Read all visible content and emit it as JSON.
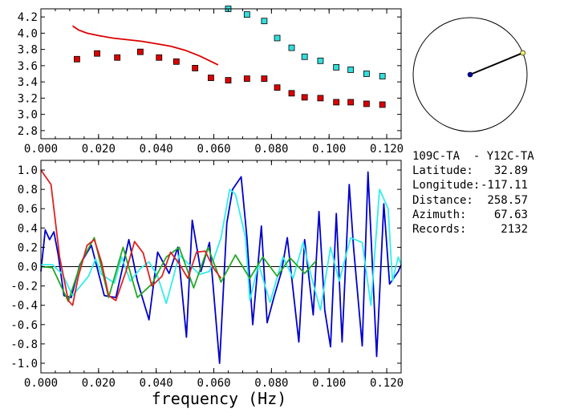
{
  "chart_data": [
    {
      "type": "scatter",
      "xlim": [
        0.0,
        0.125
      ],
      "ylim": [
        2.7,
        4.3
      ],
      "x_ticks": [
        "0.000",
        "0.020",
        "0.040",
        "0.060",
        "0.080",
        "0.100",
        "0.120"
      ],
      "y_ticks": [
        "2.8",
        "3.0",
        "3.2",
        "3.4",
        "3.6",
        "3.8",
        "4.0",
        "4.2"
      ],
      "series": [
        {
          "color": "#dd0000",
          "marker": "square",
          "x": [
            0.0125,
            0.0195,
            0.0265,
            0.0345,
            0.041,
            0.047,
            0.0535,
            0.059,
            0.065,
            0.0715,
            0.0775,
            0.082,
            0.087,
            0.0915,
            0.097,
            0.1025,
            0.1075,
            0.113,
            0.1185
          ],
          "y": [
            3.68,
            3.75,
            3.7,
            3.77,
            3.7,
            3.65,
            3.57,
            3.45,
            3.42,
            3.44,
            3.44,
            3.33,
            3.26,
            3.21,
            3.2,
            3.15,
            3.15,
            3.13,
            3.12
          ]
        },
        {
          "color": "#33dddd",
          "marker": "square",
          "x": [
            0.065,
            0.0715,
            0.0775,
            0.082,
            0.087,
            0.0915,
            0.097,
            0.1025,
            0.1075,
            0.113,
            0.1185
          ],
          "y": [
            4.3,
            4.23,
            4.15,
            3.94,
            3.82,
            3.71,
            3.66,
            3.58,
            3.55,
            3.5,
            3.47
          ]
        },
        {
          "color": "#dd0000",
          "marker": "line",
          "x": [
            0.011,
            0.013,
            0.016,
            0.02,
            0.025,
            0.03,
            0.035,
            0.04,
            0.045,
            0.05,
            0.055,
            0.058,
            0.0615
          ],
          "y": [
            4.09,
            4.04,
            4.0,
            3.97,
            3.94,
            3.92,
            3.9,
            3.87,
            3.84,
            3.79,
            3.72,
            3.67,
            3.61
          ]
        }
      ]
    },
    {
      "type": "line",
      "xlabel": "frequency (Hz)",
      "xlim": [
        0.0,
        0.125
      ],
      "ylim": [
        -1.1,
        1.1
      ],
      "x_ticks": [
        "0.000",
        "0.020",
        "0.040",
        "0.060",
        "0.080",
        "0.100",
        "0.120"
      ],
      "y_ticks": [
        "-1.0",
        "-0.8",
        "-0.6",
        "-0.4",
        "-0.2",
        "0.0",
        "0.2",
        "0.4",
        "0.6",
        "0.8",
        "1.0"
      ],
      "series": [
        {
          "color": "#0000cc",
          "x": [
            0.0,
            0.0015,
            0.003,
            0.0045,
            0.006,
            0.008,
            0.0105,
            0.0135,
            0.0175,
            0.022,
            0.026,
            0.0305,
            0.0335,
            0.0375,
            0.0405,
            0.0445,
            0.0475,
            0.0505,
            0.0525,
            0.0555,
            0.0585,
            0.062,
            0.0645,
            0.0665,
            0.0695,
            0.0715,
            0.0735,
            0.0765,
            0.0785,
            0.081,
            0.0835,
            0.0855,
            0.0895,
            0.0915,
            0.0945,
            0.0965,
            0.0985,
            0.1005,
            0.1025,
            0.1045,
            0.107,
            0.1085,
            0.1115,
            0.1135,
            0.1165,
            0.119,
            0.121,
            0.124,
            0.125
          ],
          "y": [
            -0.05,
            0.38,
            0.28,
            0.36,
            0.12,
            -0.3,
            -0.32,
            0.02,
            0.22,
            -0.3,
            -0.32,
            0.28,
            -0.15,
            -0.55,
            0.15,
            -0.07,
            0.2,
            -0.73,
            0.48,
            -0.05,
            0.25,
            -1.0,
            0.45,
            0.8,
            0.93,
            0.3,
            -0.6,
            0.42,
            -0.58,
            -0.3,
            -0.05,
            0.3,
            -0.78,
            0.28,
            -0.5,
            0.57,
            -0.45,
            -0.83,
            0.55,
            -0.78,
            0.85,
            0.2,
            -0.82,
            0.98,
            -0.93,
            0.65,
            -0.18,
            -0.05,
            0.02
          ]
        },
        {
          "color": "#33eeee",
          "x": [
            0.0,
            0.004,
            0.0075,
            0.011,
            0.0165,
            0.019,
            0.021,
            0.0255,
            0.028,
            0.031,
            0.0345,
            0.0375,
            0.0405,
            0.0435,
            0.048,
            0.0505,
            0.055,
            0.0585,
            0.0625,
            0.0655,
            0.0675,
            0.071,
            0.0725,
            0.0755,
            0.0795,
            0.084,
            0.0875,
            0.091,
            0.094,
            0.097,
            0.1005,
            0.1035,
            0.1075,
            0.1115,
            0.1145,
            0.1175,
            0.1205,
            0.122,
            0.124,
            0.125
          ],
          "y": [
            0.02,
            0.02,
            -0.08,
            -0.3,
            -0.1,
            0.08,
            -0.08,
            -0.17,
            0.1,
            -0.15,
            -0.02,
            0.05,
            -0.1,
            -0.38,
            0.12,
            0.05,
            -0.08,
            -0.05,
            0.3,
            0.8,
            0.75,
            0.3,
            -0.35,
            0.03,
            -0.37,
            0.1,
            -0.12,
            0.25,
            -0.12,
            -0.45,
            0.2,
            -0.15,
            0.3,
            0.25,
            -0.4,
            0.8,
            0.6,
            -0.15,
            0.1,
            0.02
          ]
        },
        {
          "color": "#22aa22",
          "x": [
            0.0,
            0.004,
            0.0095,
            0.014,
            0.0185,
            0.0235,
            0.0285,
            0.0335,
            0.0385,
            0.0435,
            0.048,
            0.053,
            0.058,
            0.0625,
            0.0675,
            0.0725,
            0.077,
            0.082,
            0.0865,
            0.0915,
            0.0955
          ],
          "y": [
            0.0,
            -0.01,
            -0.36,
            0.05,
            0.3,
            -0.32,
            0.2,
            -0.32,
            -0.18,
            0.1,
            0.2,
            -0.22,
            0.2,
            -0.16,
            0.12,
            -0.12,
            0.1,
            -0.1,
            0.09,
            -0.07,
            0.06
          ]
        },
        {
          "color": "#dd2222",
          "x": [
            0.0,
            0.0035,
            0.0065,
            0.0095,
            0.011,
            0.013,
            0.016,
            0.0185,
            0.021,
            0.0235,
            0.026,
            0.0295,
            0.0325,
            0.0355,
            0.0385,
            0.042,
            0.045,
            0.048,
            0.051,
            0.054,
            0.057,
            0.06,
            0.0625
          ],
          "y": [
            1.0,
            0.85,
            0.1,
            -0.35,
            -0.4,
            -0.1,
            0.22,
            0.28,
            0.05,
            -0.3,
            -0.35,
            -0.05,
            0.26,
            0.14,
            -0.2,
            -0.1,
            0.15,
            0.03,
            -0.12,
            0.15,
            0.16,
            -0.02,
            -0.12
          ]
        }
      ]
    }
  ],
  "azimuth_plot": {
    "azimuth_deg": 67.63,
    "center_dot_color": "#0000aa",
    "end_dot_color": "#eeee66"
  },
  "info": {
    "title": "109C-TA  - Y12C-TA",
    "rows": [
      {
        "label": "Latitude:",
        "value": "32.89"
      },
      {
        "label": "Longitude:",
        "value": "-117.11"
      },
      {
        "label": "Distance:",
        "value": "258.57"
      },
      {
        "label": "Azimuth:",
        "value": "67.63"
      },
      {
        "label": "Records:",
        "value": "2132"
      }
    ]
  }
}
